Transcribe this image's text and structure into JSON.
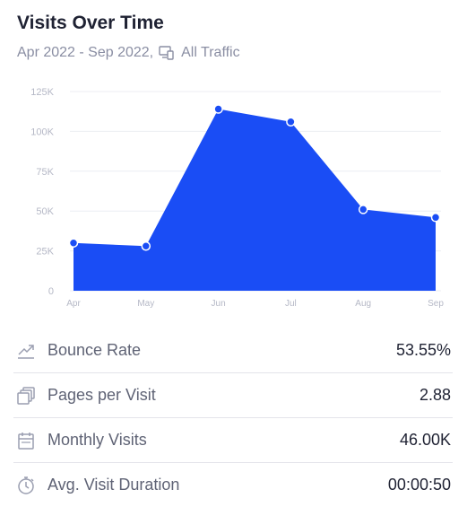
{
  "title": "Visits Over Time",
  "subtitle": {
    "range": "Apr 2022 - Sep 2022,",
    "traffic": "All Traffic",
    "icon": "devices-icon"
  },
  "colors": {
    "area": "#1a4df5",
    "grid": "#eceef3",
    "tick": "#b5b8c6",
    "point_stroke": "#ffffff"
  },
  "chart_data": {
    "type": "area",
    "categories": [
      "Apr",
      "May",
      "Jun",
      "Jul",
      "Aug",
      "Sep"
    ],
    "values": [
      30000,
      28000,
      114000,
      106000,
      51000,
      46000
    ],
    "y_ticks": [
      "0",
      "25K",
      "50K",
      "75K",
      "100K",
      "125K"
    ],
    "ylim": [
      0,
      125000
    ],
    "grid": true
  },
  "metrics": [
    {
      "label": "Bounce Rate",
      "value": "53.55%",
      "icon": "trend-arrow-icon"
    },
    {
      "label": "Pages per Visit",
      "value": "2.88",
      "icon": "pages-icon"
    },
    {
      "label": "Monthly Visits",
      "value": "46.00K",
      "icon": "calendar-icon"
    },
    {
      "label": "Avg. Visit Duration",
      "value": "00:00:50",
      "icon": "stopwatch-icon"
    }
  ]
}
